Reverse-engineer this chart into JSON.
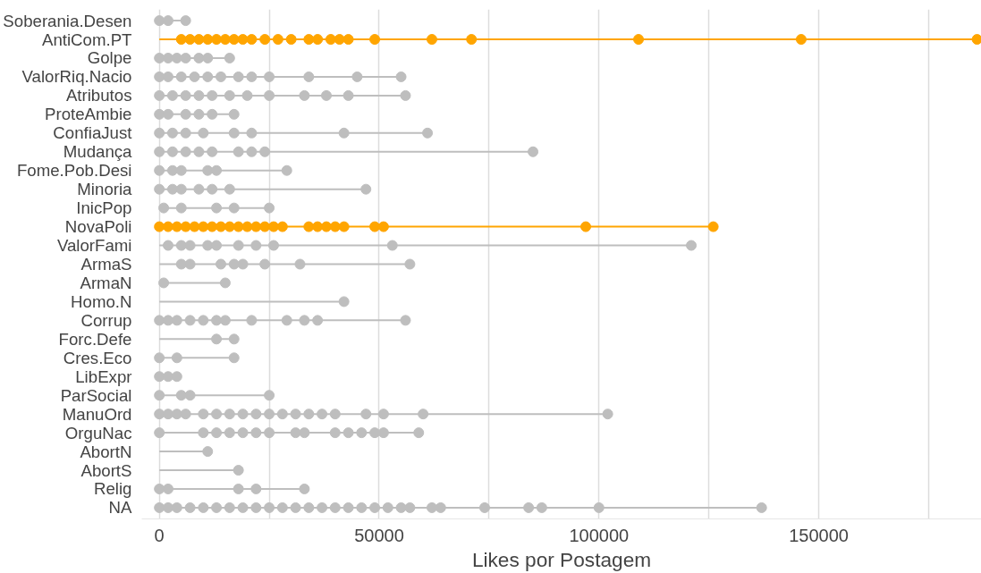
{
  "chart_data": {
    "type": "lollipop",
    "orientation": "horizontal",
    "xlabel": "Likes por Postagem",
    "grid": "x",
    "marker": "circle",
    "xlim": [
      -4000,
      187000
    ],
    "xticks": [
      0,
      {
        "value": 25000,
        "label": null
      },
      50000,
      {
        "value": 75000,
        "label": null
      },
      100000,
      {
        "value": 125000,
        "label": null
      },
      150000,
      {
        "value": 175000,
        "label": null
      }
    ],
    "categories": [
      "Soberania.Desen",
      "AntiCom.PT",
      "Golpe",
      "ValorRiq.Nacio",
      "Atributos",
      "ProteAmbie",
      "ConfiaJust",
      "Mudança",
      "Fome.Pob.Desi",
      "Minoria",
      "InicPop",
      "NovaPoli",
      "ValorFami",
      "ArmaS",
      "ArmaN",
      "Homo.N",
      "Corrup",
      "Forc.Defe",
      "Cres.Eco",
      "LibExpr",
      "ParSocial",
      "ManuOrd",
      "OrguNac",
      "AbortN",
      "AbortS",
      "Relig",
      "NA"
    ],
    "series": [
      {
        "color": "#bebebe",
        "x": [
          "Soberania.Desen",
          "Soberania.Desen",
          "Soberania.Desen",
          "Golpe",
          "Golpe",
          "Golpe",
          "Golpe",
          "Golpe",
          "Golpe",
          "Golpe",
          "ValorRiq.Nacio",
          "ValorRiq.Nacio",
          "ValorRiq.Nacio",
          "ValorRiq.Nacio",
          "ValorRiq.Nacio",
          "ValorRiq.Nacio",
          "ValorRiq.Nacio",
          "ValorRiq.Nacio",
          "ValorRiq.Nacio",
          "ValorRiq.Nacio",
          "ValorRiq.Nacio",
          "ValorRiq.Nacio",
          "Atributos",
          "Atributos",
          "Atributos",
          "Atributos",
          "Atributos",
          "Atributos",
          "Atributos",
          "Atributos",
          "Atributos",
          "Atributos",
          "Atributos",
          "Atributos",
          "ProteAmbie",
          "ProteAmbie",
          "ProteAmbie",
          "ProteAmbie",
          "ProteAmbie",
          "ProteAmbie",
          "ConfiaJust",
          "ConfiaJust",
          "ConfiaJust",
          "ConfiaJust",
          "ConfiaJust",
          "ConfiaJust",
          "ConfiaJust",
          "ConfiaJust",
          "Mudança",
          "Mudança",
          "Mudança",
          "Mudança",
          "Mudança",
          "Mudança",
          "Mudança",
          "Mudança",
          "Mudança",
          "Fome.Pob.Desi",
          "Fome.Pob.Desi",
          "Fome.Pob.Desi",
          "Fome.Pob.Desi",
          "Fome.Pob.Desi",
          "Fome.Pob.Desi",
          "Minoria",
          "Minoria",
          "Minoria",
          "Minoria",
          "Minoria",
          "Minoria",
          "Minoria",
          "InicPop",
          "InicPop",
          "InicPop",
          "InicPop",
          "InicPop",
          "ValorFami",
          "ValorFami",
          "ValorFami",
          "ValorFami",
          "ValorFami",
          "ValorFami",
          "ValorFami",
          "ValorFami",
          "ValorFami",
          "ValorFami",
          "ArmaS",
          "ArmaS",
          "ArmaS",
          "ArmaS",
          "ArmaS",
          "ArmaS",
          "ArmaS",
          "ArmaS",
          "ArmaN",
          "ArmaN",
          "Homo.N",
          "Corrup",
          "Corrup",
          "Corrup",
          "Corrup",
          "Corrup",
          "Corrup",
          "Corrup",
          "Corrup",
          "Corrup",
          "Corrup",
          "Corrup",
          "Corrup",
          "Forc.Defe",
          "Forc.Defe",
          "Cres.Eco",
          "Cres.Eco",
          "Cres.Eco",
          "LibExpr",
          "LibExpr",
          "LibExpr",
          "ParSocial",
          "ParSocial",
          "ParSocial",
          "ParSocial",
          "ManuOrd",
          "ManuOrd",
          "ManuOrd",
          "ManuOrd",
          "ManuOrd",
          "ManuOrd",
          "ManuOrd",
          "ManuOrd",
          "ManuOrd",
          "ManuOrd",
          "ManuOrd",
          "ManuOrd",
          "ManuOrd",
          "ManuOrd",
          "ManuOrd",
          "ManuOrd",
          "ManuOrd",
          "ManuOrd",
          "ManuOrd",
          "OrguNac",
          "OrguNac",
          "OrguNac",
          "OrguNac",
          "OrguNac",
          "OrguNac",
          "OrguNac",
          "OrguNac",
          "OrguNac",
          "OrguNac",
          "OrguNac",
          "OrguNac",
          "OrguNac",
          "OrguNac",
          "OrguNac",
          "AbortN",
          "AbortS",
          "Relig",
          "Relig",
          "Relig",
          "Relig",
          "Relig",
          "NA",
          "NA",
          "NA",
          "NA",
          "NA",
          "NA",
          "NA",
          "NA",
          "NA",
          "NA",
          "NA",
          "NA",
          "NA",
          "NA",
          "NA",
          "NA",
          "NA",
          "NA",
          "NA",
          "NA",
          "NA",
          "NA",
          "NA",
          "NA",
          "NA",
          "NA",
          "NA",
          "NA"
        ],
        "values": [
          0,
          2000,
          6000,
          0,
          2000,
          4000,
          6000,
          9000,
          11000,
          16000,
          0,
          2000,
          5000,
          8000,
          11000,
          14000,
          18000,
          21000,
          25000,
          34000,
          45000,
          55000,
          0,
          3000,
          6000,
          9000,
          12000,
          16000,
          20000,
          25000,
          33000,
          38000,
          43000,
          56000,
          0,
          2000,
          6000,
          9000,
          12000,
          17000,
          0,
          3000,
          6000,
          10000,
          17000,
          21000,
          42000,
          61000,
          0,
          3000,
          6000,
          9000,
          12000,
          18000,
          21000,
          24000,
          85000,
          0,
          3000,
          5000,
          11000,
          13000,
          29000,
          0,
          3000,
          5000,
          9000,
          12000,
          16000,
          47000,
          1000,
          5000,
          13000,
          17000,
          25000,
          2000,
          5000,
          7000,
          11000,
          13000,
          18000,
          22000,
          26000,
          53000,
          121000,
          5000,
          7000,
          14000,
          17000,
          19000,
          24000,
          32000,
          57000,
          1000,
          15000,
          42000,
          0,
          2000,
          4000,
          7000,
          10000,
          13000,
          15000,
          21000,
          29000,
          33000,
          36000,
          56000,
          13000,
          17000,
          0,
          4000,
          17000,
          0,
          2000,
          4000,
          0,
          5000,
          7000,
          25000,
          0,
          2000,
          4000,
          6000,
          10000,
          13000,
          16000,
          19000,
          22000,
          25000,
          28000,
          31000,
          34000,
          37000,
          40000,
          47000,
          51000,
          60000,
          102000,
          0,
          10000,
          13000,
          16000,
          19000,
          22000,
          25000,
          31000,
          33000,
          40000,
          43000,
          46000,
          49000,
          51000,
          59000,
          11000,
          18000,
          0,
          2000,
          18000,
          22000,
          33000,
          0,
          2000,
          4000,
          7000,
          10000,
          13000,
          16000,
          19000,
          22000,
          25000,
          28000,
          31000,
          34000,
          37000,
          40000,
          43000,
          46000,
          49000,
          52000,
          55000,
          57000,
          62000,
          64000,
          74000,
          84000,
          87000,
          100000,
          137000
        ]
      },
      {
        "color": "#ffa500",
        "x": [
          "AntiCom.PT",
          "AntiCom.PT",
          "AntiCom.PT",
          "AntiCom.PT",
          "AntiCom.PT",
          "AntiCom.PT",
          "AntiCom.PT",
          "AntiCom.PT",
          "AntiCom.PT",
          "AntiCom.PT",
          "AntiCom.PT",
          "AntiCom.PT",
          "AntiCom.PT",
          "AntiCom.PT",
          "AntiCom.PT",
          "AntiCom.PT",
          "AntiCom.PT",
          "AntiCom.PT",
          "AntiCom.PT",
          "AntiCom.PT",
          "AntiCom.PT",
          "AntiCom.PT",
          "AntiCom.PT",
          "NovaPoli",
          "NovaPoli",
          "NovaPoli",
          "NovaPoli",
          "NovaPoli",
          "NovaPoli",
          "NovaPoli",
          "NovaPoli",
          "NovaPoli",
          "NovaPoli",
          "NovaPoli",
          "NovaPoli",
          "NovaPoli",
          "NovaPoli",
          "NovaPoli",
          "NovaPoli",
          "NovaPoli",
          "NovaPoli",
          "NovaPoli",
          "NovaPoli",
          "NovaPoli",
          "NovaPoli",
          "NovaPoli",
          "NovaPoli"
        ],
        "values": [
          5000,
          7000,
          9000,
          11000,
          13000,
          15000,
          17000,
          19000,
          21000,
          24000,
          27000,
          30000,
          34000,
          36000,
          39000,
          41000,
          43000,
          49000,
          62000,
          71000,
          109000,
          146000,
          186000,
          0,
          2000,
          4000,
          6000,
          8000,
          10000,
          12000,
          14000,
          16000,
          18000,
          20000,
          22000,
          24000,
          26000,
          28000,
          34000,
          36000,
          38000,
          40000,
          42000,
          49000,
          51000,
          97000,
          126000
        ]
      }
    ]
  }
}
